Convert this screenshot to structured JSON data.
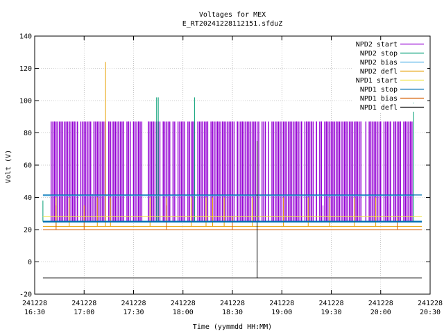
{
  "chart_data": {
    "type": "line",
    "title": "Voltages for MEX",
    "subtitle": "E_RT20241228112151.sfduZ",
    "xlabel": "Time (yymmdd HH:MM)",
    "ylabel": "Volt (V)",
    "xlim": [
      "16:30",
      "20:30"
    ],
    "ylim": [
      -20,
      140
    ],
    "y_ticks": [
      -20,
      0,
      20,
      40,
      60,
      80,
      100,
      120,
      140
    ],
    "x_ticks": [
      {
        "t": "16:30",
        "date": "241228",
        "time": "16:30"
      },
      {
        "t": "17:00",
        "date": "241228",
        "time": "17:00"
      },
      {
        "t": "17:30",
        "date": "241228",
        "time": "17:30"
      },
      {
        "t": "18:00",
        "date": "241228",
        "time": "18:00"
      },
      {
        "t": "18:30",
        "date": "241228",
        "time": "18:30"
      },
      {
        "t": "19:00",
        "date": "241228",
        "time": "19:00"
      },
      {
        "t": "19:30",
        "date": "241228",
        "time": "19:30"
      },
      {
        "t": "20:00",
        "date": "241228",
        "time": "20:00"
      },
      {
        "t": "20:30",
        "date": "241228",
        "time": "20:30"
      }
    ],
    "grid": true,
    "legend_position": "top-right",
    "series": [
      {
        "name": "NPD2 start",
        "color": "#9400d3",
        "base": 25,
        "segments": [
          [
            "16:40",
            "20:20"
          ]
        ],
        "spike_level": 87,
        "spike_range": [
          "16:40",
          "20:20"
        ],
        "spikes": [
          [
            "16:55",
            38
          ],
          [
            "17:05",
            42
          ],
          [
            "17:40",
            38
          ],
          [
            "18:05",
            36
          ],
          [
            "18:20",
            38
          ],
          [
            "19:25",
            35
          ],
          [
            "19:45",
            40
          ],
          [
            "20:05",
            36
          ],
          [
            "20:15",
            36
          ]
        ]
      },
      {
        "name": "NPD2 stop",
        "color": "#009e73",
        "base": 25,
        "segments": [
          [
            "16:35",
            "20:20"
          ]
        ],
        "spikes": [
          [
            "16:35",
            38
          ],
          [
            "17:44",
            102
          ],
          [
            "17:45",
            102
          ],
          [
            "18:07",
            102
          ],
          [
            "20:20",
            101
          ]
        ]
      },
      {
        "name": "NPD2 bias",
        "color": "#56b4e9",
        "base": 41,
        "segments": [
          [
            "16:35",
            "20:20"
          ]
        ],
        "spikes": []
      },
      {
        "name": "NPD2 defl",
        "color": "#e69f00",
        "base": 22,
        "segments": [
          [
            "16:35",
            "20:25"
          ]
        ],
        "spikes": [
          [
            "16:43",
            40
          ],
          [
            "16:51",
            40
          ],
          [
            "17:08",
            40
          ],
          [
            "17:13",
            124
          ],
          [
            "17:16",
            40
          ],
          [
            "17:40",
            40
          ],
          [
            "17:50",
            40
          ],
          [
            "18:05",
            40
          ],
          [
            "18:14",
            40
          ],
          [
            "18:18",
            40
          ],
          [
            "18:25",
            40
          ],
          [
            "18:42",
            40
          ],
          [
            "19:01",
            40
          ],
          [
            "19:16",
            40
          ],
          [
            "19:29",
            40
          ],
          [
            "19:44",
            40
          ],
          [
            "19:57",
            40
          ]
        ]
      },
      {
        "name": "NPD1 start",
        "color": "#f0e442",
        "base": 28,
        "segments": [
          [
            "16:35",
            "20:25"
          ]
        ],
        "spikes": []
      },
      {
        "name": "NPD1 stop",
        "color": "#0072b2",
        "base": 41.5,
        "segments": [
          [
            "16:35",
            "20:25"
          ]
        ],
        "spikes": []
      },
      {
        "name": "NPD1 bias",
        "color": "#d55e00",
        "base": 20,
        "segments": [
          [
            "16:35",
            "20:25"
          ]
        ],
        "spikes": [
          [
            "16:43",
            35
          ],
          [
            "17:00",
            35
          ],
          [
            "17:50",
            35
          ],
          [
            "18:30",
            28
          ],
          [
            "20:10",
            27
          ]
        ]
      },
      {
        "name": "NPD1 defl",
        "color": "#000000",
        "base": -10,
        "segments": [
          [
            "16:35",
            "20:25"
          ]
        ],
        "spikes": [
          [
            "18:45",
            75
          ]
        ]
      }
    ]
  }
}
